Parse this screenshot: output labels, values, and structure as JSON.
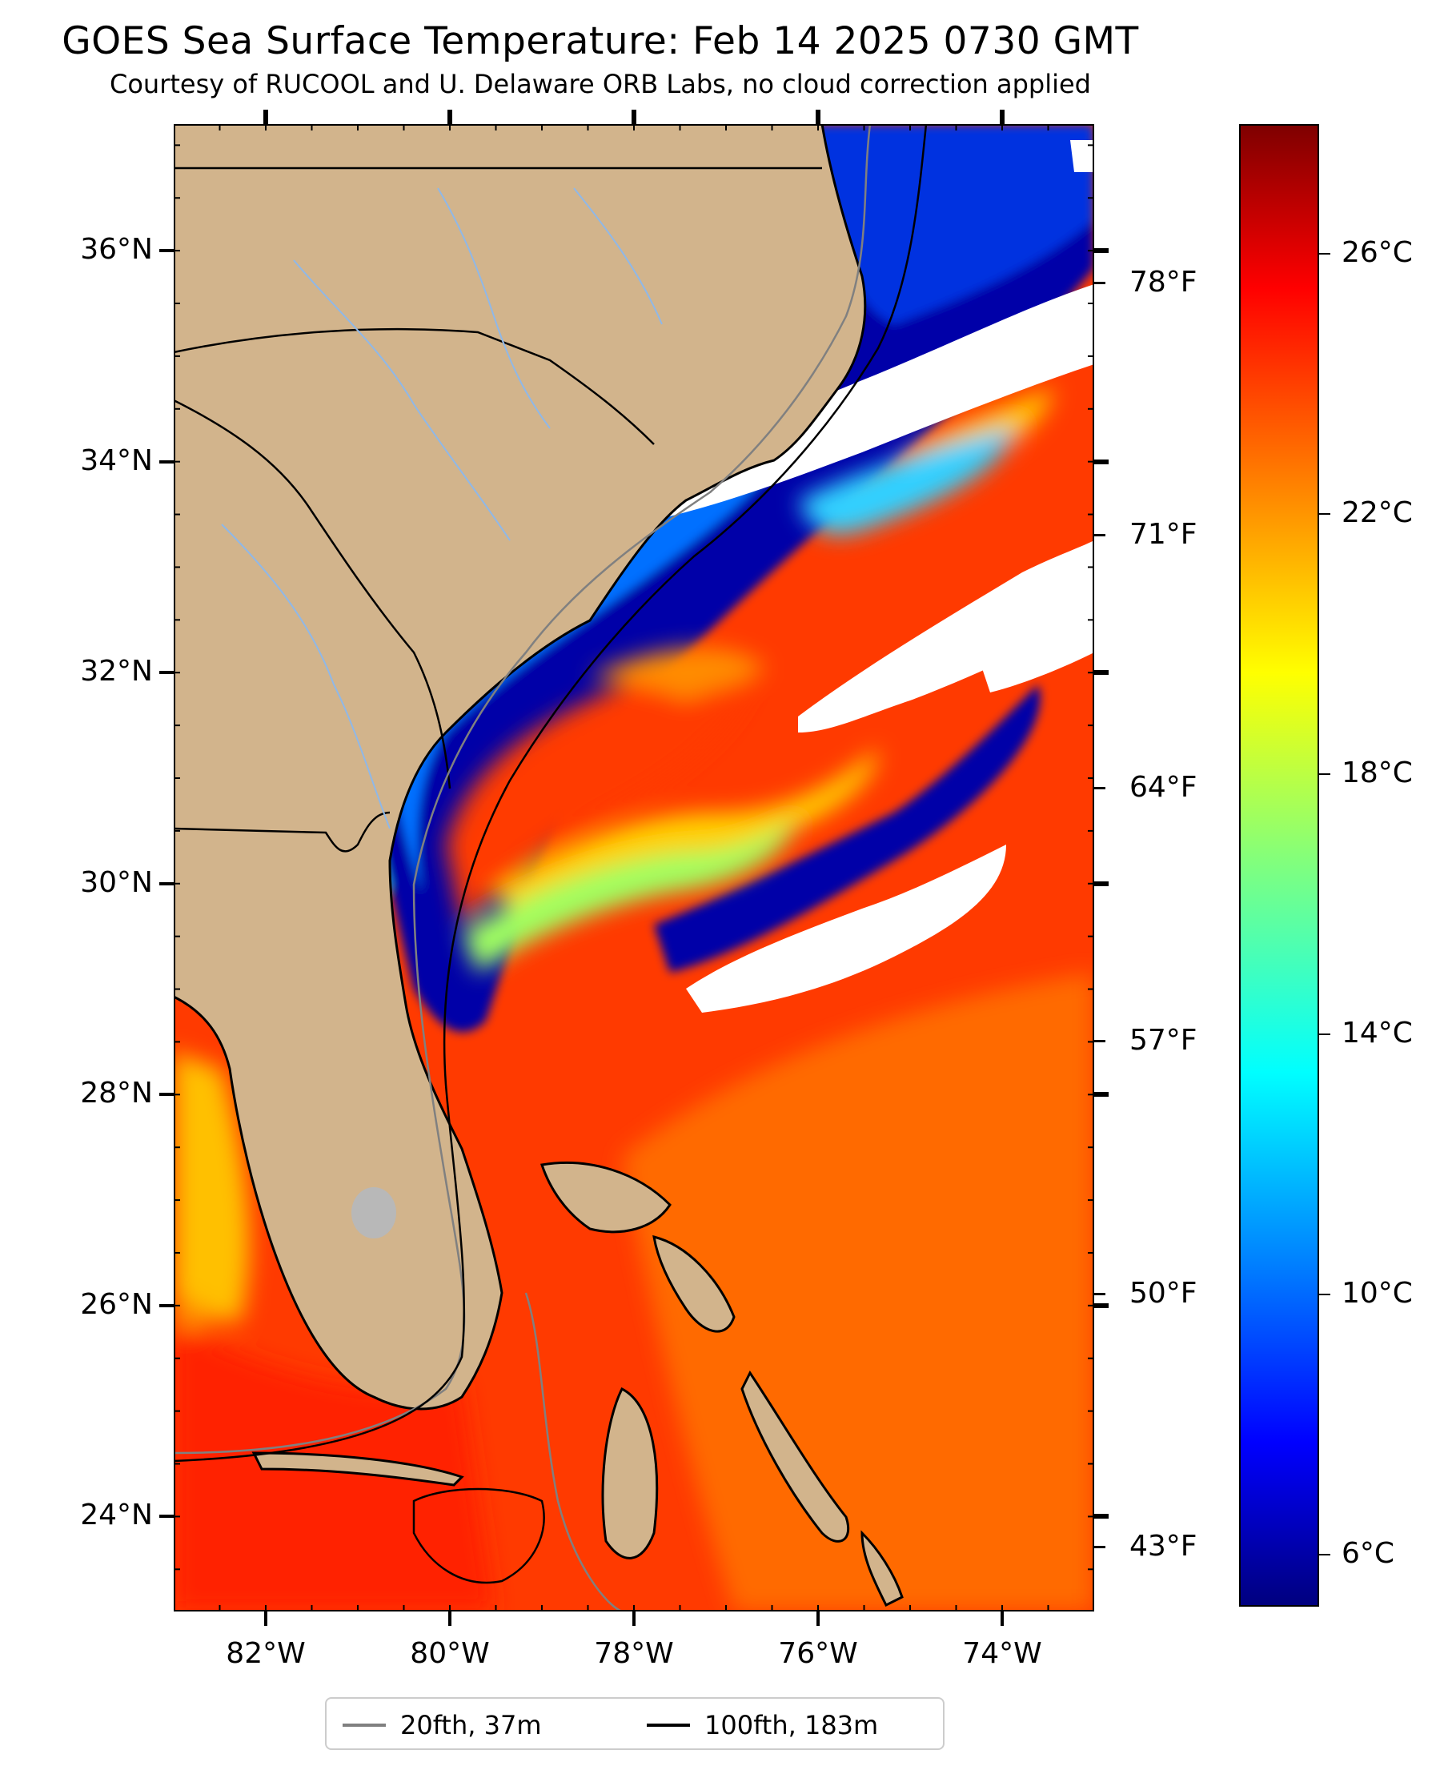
{
  "title": "GOES Sea Surface Temperature: Feb 14 2025 0730 GMT",
  "subtitle": "Courtesy of RUCOOL and U. Delaware ORB Labs, no cloud correction applied",
  "map": {
    "lon_range": [
      -83,
      -73
    ],
    "lat_range": [
      23.1,
      37.2
    ],
    "land_color": "#d2b48c",
    "cloud_color": "#ffffff",
    "lat_ticks": [
      {
        "value": 36,
        "label": "36°N"
      },
      {
        "value": 34,
        "label": "34°N"
      },
      {
        "value": 32,
        "label": "32°N"
      },
      {
        "value": 30,
        "label": "30°N"
      },
      {
        "value": 28,
        "label": "28°N"
      },
      {
        "value": 26,
        "label": "26°N"
      },
      {
        "value": 24,
        "label": "24°N"
      }
    ],
    "lon_ticks": [
      {
        "value": -82,
        "label": "82°W"
      },
      {
        "value": -80,
        "label": "80°W"
      },
      {
        "value": -78,
        "label": "78°W"
      },
      {
        "value": -76,
        "label": "76°W"
      },
      {
        "value": -74,
        "label": "74°W"
      }
    ],
    "fahrenheit_ticks": [
      {
        "value": 78,
        "label": "78°F"
      },
      {
        "value": 71,
        "label": "71°F"
      },
      {
        "value": 64,
        "label": "64°F"
      },
      {
        "value": 57,
        "label": "57°F"
      },
      {
        "value": 50,
        "label": "50°F"
      },
      {
        "value": 43,
        "label": "43°F"
      }
    ]
  },
  "colorbar": {
    "range_c": [
      5.2,
      28.0
    ],
    "colormap": "jet",
    "ticks": [
      {
        "value": 26,
        "label": "26°C"
      },
      {
        "value": 22,
        "label": "22°C"
      },
      {
        "value": 18,
        "label": "18°C"
      },
      {
        "value": 14,
        "label": "14°C"
      },
      {
        "value": 10,
        "label": "10°C"
      },
      {
        "value": 6,
        "label": "6°C"
      }
    ]
  },
  "legend": {
    "items": [
      {
        "label": "20fth, 37m",
        "color": "#808080"
      },
      {
        "label": "100fth, 183m",
        "color": "#000000"
      }
    ]
  }
}
